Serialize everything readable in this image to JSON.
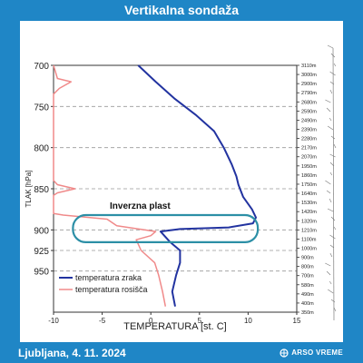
{
  "header": {
    "title": "Vertikalna sondaža"
  },
  "footer": {
    "location_date": "Ljubljana, 4. 11. 2024",
    "brand": "ARSO VREME"
  },
  "colors": {
    "background": "#1f86c6",
    "air_temperature": "#2233a0",
    "dew_point": "#f08a8a",
    "inversion_box": "#2c8fa6",
    "grid": "#999999"
  },
  "chart_data": {
    "type": "line",
    "title": "",
    "xlabel": "TEMPERATURA [st. C]",
    "ylabel": "TLAK [hPa]",
    "xlim": [
      -10,
      15
    ],
    "ylim": [
      1000,
      700
    ],
    "x_ticks": [
      -10,
      -5,
      0,
      5,
      10,
      15
    ],
    "y_ticks": [
      700,
      750,
      800,
      850,
      900,
      925,
      950
    ],
    "height_labels": [
      "3110m",
      "3000m",
      "2900m",
      "2790m",
      "2680m",
      "2590m",
      "2490m",
      "2390m",
      "2280m",
      "2170m",
      "2070m",
      "1950m",
      "1860m",
      "1750m",
      "1640m",
      "1530m",
      "1420m",
      "1320m",
      "1210m",
      "1100m",
      "1000m",
      "900m",
      "800m",
      "700m",
      "580m",
      "490m",
      "400m",
      "350m"
    ],
    "legend": {
      "position": "bottom-left",
      "entries": [
        "temperatura zraka",
        "temperatura rosišča"
      ]
    },
    "annotation": {
      "text": "Inverzna plast",
      "p_range": [
        882,
        915
      ],
      "t_range": [
        -8,
        11
      ]
    },
    "grid": "horizontal-dashed",
    "series": [
      {
        "name": "temperatura zraka",
        "points": [
          {
            "t": -1.3,
            "p": 700
          },
          {
            "t": 0.5,
            "p": 720
          },
          {
            "t": 2.4,
            "p": 740
          },
          {
            "t": 4.6,
            "p": 760
          },
          {
            "t": 6.5,
            "p": 780
          },
          {
            "t": 7.5,
            "p": 800
          },
          {
            "t": 8.3,
            "p": 820
          },
          {
            "t": 8.8,
            "p": 835
          },
          {
            "t": 9.0,
            "p": 845
          },
          {
            "t": 9.5,
            "p": 860
          },
          {
            "t": 10.4,
            "p": 875
          },
          {
            "t": 10.8,
            "p": 885
          },
          {
            "t": 10.5,
            "p": 892
          },
          {
            "t": 8.0,
            "p": 897
          },
          {
            "t": 3.0,
            "p": 899
          },
          {
            "t": 1.0,
            "p": 902
          },
          {
            "t": 2.0,
            "p": 915
          },
          {
            "t": 3.0,
            "p": 925
          },
          {
            "t": 3.0,
            "p": 940
          },
          {
            "t": 2.6,
            "p": 955
          },
          {
            "t": 2.2,
            "p": 975
          },
          {
            "t": 2.5,
            "p": 993
          }
        ]
      },
      {
        "name": "temperatura rosišča",
        "points": [
          {
            "t": -10,
            "p": 700
          },
          {
            "t": -9.6,
            "p": 716
          },
          {
            "t": -8.2,
            "p": 720
          },
          {
            "t": -9.4,
            "p": 728
          },
          {
            "t": -10,
            "p": 735
          },
          {
            "t": -10,
            "p": 840
          },
          {
            "t": -9.6,
            "p": 845
          },
          {
            "t": -7.8,
            "p": 850
          },
          {
            "t": -9.6,
            "p": 855
          },
          {
            "t": -10,
            "p": 858
          },
          {
            "t": -10,
            "p": 880
          },
          {
            "t": -9.0,
            "p": 882
          },
          {
            "t": -4.5,
            "p": 887
          },
          {
            "t": -3.5,
            "p": 895
          },
          {
            "t": 0.5,
            "p": 902
          },
          {
            "t": 0.0,
            "p": 907
          },
          {
            "t": -1.5,
            "p": 912
          },
          {
            "t": -1.0,
            "p": 925
          },
          {
            "t": 0.4,
            "p": 940
          },
          {
            "t": 0.8,
            "p": 955
          },
          {
            "t": 1.2,
            "p": 975
          },
          {
            "t": 1.5,
            "p": 993
          }
        ]
      }
    ]
  }
}
